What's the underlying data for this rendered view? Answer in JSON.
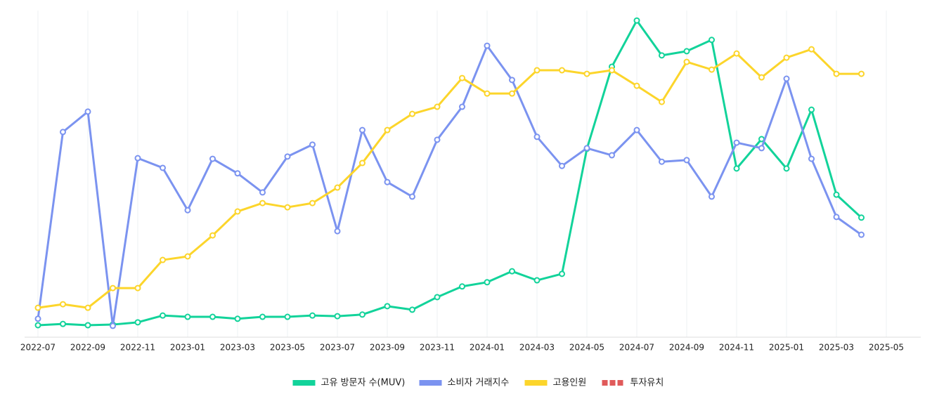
{
  "chart_data": {
    "type": "line",
    "categories": [
      "2022-07",
      null,
      "2022-09",
      null,
      "2022-11",
      null,
      "2023-01",
      null,
      "2023-03",
      null,
      "2023-05",
      null,
      "2023-07",
      null,
      "2023-09",
      null,
      "2023-11",
      null,
      "2024-01",
      null,
      "2024-03",
      null,
      "2024-05",
      null,
      "2024-07",
      null,
      "2024-09",
      null,
      "2024-11",
      null,
      "2025-01",
      null,
      "2025-03",
      null,
      "2025-05"
    ],
    "series": [
      {
        "name": "고유 방문자 수(MUV)",
        "color": "#12d39a",
        "values": [
          3.7,
          4.1,
          3.7,
          3.9,
          4.6,
          6.7,
          6.3,
          6.3,
          5.7,
          6.3,
          6.3,
          6.7,
          6.5,
          7.0,
          9.6,
          8.5,
          12.4,
          15.7,
          17.0,
          20.4,
          17.6,
          19.6,
          58.3,
          83.7,
          98.0,
          87.2,
          88.5,
          92.0,
          52.2,
          61.3,
          52.2,
          70.4,
          44.1,
          37.0,
          null
        ]
      },
      {
        "name": "소비자 거래지수",
        "color": "#7b93f0",
        "values": [
          5.7,
          63.5,
          69.8,
          3.5,
          55.4,
          52.4,
          39.3,
          55.2,
          50.7,
          44.8,
          55.9,
          59.6,
          32.8,
          64.1,
          48.0,
          43.5,
          61.1,
          71.3,
          90.2,
          79.6,
          62.0,
          53.0,
          58.5,
          56.3,
          64.1,
          54.3,
          54.8,
          43.5,
          60.2,
          58.5,
          80.0,
          55.2,
          37.2,
          31.7,
          null
        ]
      },
      {
        "name": "고용인원",
        "color": "#fcd52b",
        "values": [
          9.1,
          10.2,
          9.1,
          15.2,
          15.2,
          23.9,
          25.0,
          31.5,
          38.9,
          41.5,
          40.2,
          41.5,
          46.3,
          53.9,
          64.1,
          69.1,
          71.3,
          80.2,
          75.4,
          75.4,
          82.6,
          82.6,
          81.5,
          82.6,
          77.8,
          72.8,
          85.2,
          82.8,
          87.8,
          80.4,
          86.5,
          89.1,
          81.5,
          81.5,
          null
        ]
      },
      {
        "name": "투자유치",
        "color": "#e05a5a",
        "dashed": true,
        "values": [
          null,
          null,
          null,
          null,
          null,
          null,
          null,
          null,
          null,
          null,
          null,
          null,
          null,
          null,
          null,
          null,
          null,
          null,
          null,
          null,
          null,
          null,
          null,
          null,
          null,
          null,
          null,
          null,
          null,
          null,
          null,
          null,
          null,
          null,
          null
        ]
      }
    ],
    "ylim": [
      0,
      100
    ],
    "grid": true,
    "legend": "bottom"
  }
}
